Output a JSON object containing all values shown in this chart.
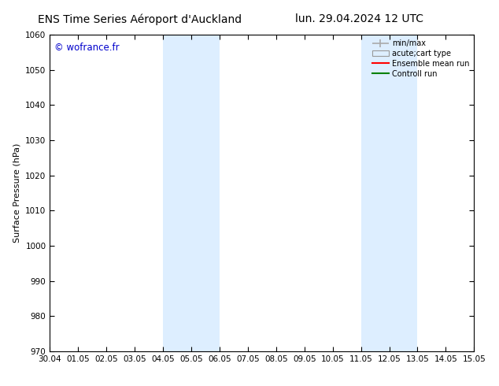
{
  "title_left": "ENS Time Series Aéroport d'Auckland",
  "title_right": "lun. 29.04.2024 12 UTC",
  "ylabel": "Surface Pressure (hPa)",
  "watermark": "© wofrance.fr",
  "watermark_color": "#0000cc",
  "ylim": [
    970,
    1060
  ],
  "yticks": [
    970,
    980,
    990,
    1000,
    1010,
    1020,
    1030,
    1040,
    1050,
    1060
  ],
  "xtick_labels": [
    "30.04",
    "01.05",
    "02.05",
    "03.05",
    "04.05",
    "05.05",
    "06.05",
    "07.05",
    "08.05",
    "09.05",
    "10.05",
    "11.05",
    "12.05",
    "13.05",
    "14.05",
    "15.05"
  ],
  "xtick_positions": [
    0,
    1,
    2,
    3,
    4,
    5,
    6,
    7,
    8,
    9,
    10,
    11,
    12,
    13,
    14,
    15
  ],
  "shaded_bands": [
    {
      "xmin": 4,
      "xmax": 6
    },
    {
      "xmin": 11,
      "xmax": 13
    }
  ],
  "shade_color": "#ddeeff",
  "shade_alpha": 1.0,
  "bg_color": "#ffffff",
  "plot_bg_color": "#ffffff",
  "legend_entries": [
    {
      "label": "min/max",
      "color": "#aaaaaa",
      "type": "minmax"
    },
    {
      "label": "acute;cart type",
      "color": "#cccccc",
      "type": "fill"
    },
    {
      "label": "Ensemble mean run",
      "color": "#ff0000",
      "type": "line"
    },
    {
      "label": "Controll run",
      "color": "#008000",
      "type": "line"
    }
  ],
  "title_fontsize": 10,
  "axis_fontsize": 8,
  "tick_fontsize": 7.5,
  "legend_fontsize": 7
}
